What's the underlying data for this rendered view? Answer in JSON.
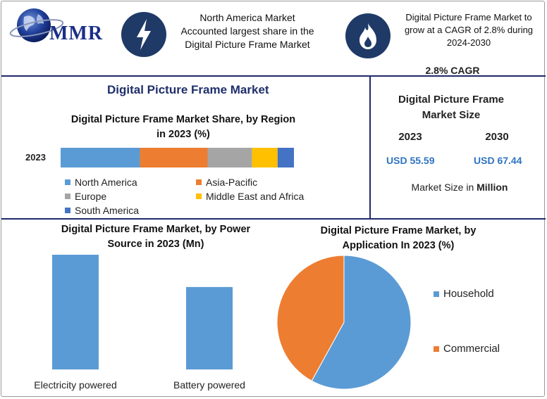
{
  "logo": {
    "text": "MMR"
  },
  "header": {
    "north_america_text": [
      "North America Market",
      "Accounted largest share in the",
      "Digital Picture Frame Market"
    ],
    "cagr_text": [
      "Digital Picture Frame Market to",
      "grow at a CAGR of 2.8% during",
      "2024-2030"
    ]
  },
  "main_title": "Digital Picture Frame Market",
  "market_size": {
    "cagr": "2.8% CAGR",
    "title_line1": "Digital Picture Frame",
    "title_line2": "Market Size",
    "year1": "2023",
    "year2": "2030",
    "value1": "USD 55.59",
    "value2": "USD 67.44",
    "footer_prefix": "Market Size in ",
    "footer_bold": "Million"
  },
  "colors": {
    "north_america": "#5b9bd5",
    "asia_pacific": "#ed7d31",
    "europe": "#a5a5a5",
    "mea": "#ffc000",
    "south_america": "#4472c4",
    "bar": "#5b9bd5",
    "header_circle": "#1f3a66",
    "divider": "#1f2a6b"
  },
  "chart_data": [
    {
      "type": "bar",
      "orientation": "horizontal-stacked",
      "title": "Digital Picture Frame Market Share, by Region in 2023 (%)",
      "title_lines": [
        "Digital Picture Frame Market Share, by Region",
        "in 2023 (%)"
      ],
      "categories": [
        "2023"
      ],
      "series": [
        {
          "name": "North America",
          "values": [
            34
          ]
        },
        {
          "name": "Asia-Pacific",
          "values": [
            29
          ]
        },
        {
          "name": "Europe",
          "values": [
            19
          ]
        },
        {
          "name": "Middle East and Africa",
          "values": [
            11
          ]
        },
        {
          "name": "South America",
          "values": [
            7
          ]
        }
      ],
      "legend_position": "bottom"
    },
    {
      "type": "bar",
      "title": "Digital Picture Frame Market, by Power Source in 2023 (Mn)",
      "title_lines": [
        "Digital Picture Frame Market, by Power",
        "Source in 2023 (Mn)"
      ],
      "categories": [
        "Electricity powered",
        "Battery powered"
      ],
      "values": [
        32,
        23
      ],
      "ylim": [
        0,
        32
      ],
      "grid": false
    },
    {
      "type": "pie",
      "title": "Digital Picture Frame Market, by Application In 2023 (%)",
      "title_lines": [
        "Digital Picture Frame Market, by",
        "Application In 2023 (%)"
      ],
      "labels": [
        "Household",
        "Commercial"
      ],
      "values": [
        58,
        42
      ],
      "legend_position": "right"
    }
  ]
}
